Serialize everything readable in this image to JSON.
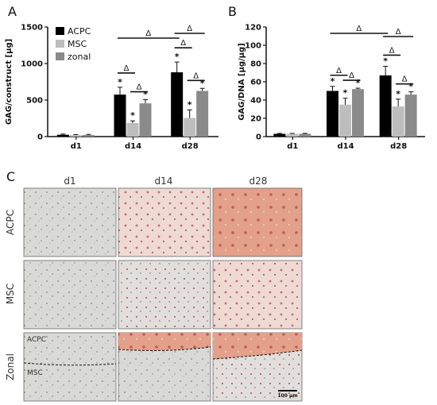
{
  "panels": {
    "a": "A",
    "b": "B",
    "c": "C"
  },
  "colors": {
    "acpc": "#000000",
    "msc": "#bdbdbd",
    "zonal": "#8a8a8a"
  },
  "chart_data": [
    {
      "type": "bar",
      "categories": [
        "d1",
        "d14",
        "d28"
      ],
      "ylabel": "GAG/construct [µg]",
      "ylim": [
        0,
        1500
      ],
      "yticks": [
        "0",
        "500",
        "1000",
        "1500"
      ],
      "series": [
        {
          "name": "ACPC",
          "values": [
            25,
            575,
            880
          ],
          "errors": [
            10,
            100,
            140
          ]
        },
        {
          "name": "MSC",
          "values": [
            20,
            185,
            255
          ],
          "errors": [
            8,
            30,
            110
          ]
        },
        {
          "name": "zonal",
          "values": [
            22,
            455,
            625
          ],
          "errors": [
            8,
            50,
            35
          ]
        }
      ],
      "significance": {
        "star": "*",
        "delta": "Δ"
      },
      "legend": "top-left"
    },
    {
      "type": "bar",
      "categories": [
        "d1",
        "d14",
        "d28"
      ],
      "ylabel": "GAG/DNA [µg/µg]",
      "ylim": [
        0,
        120
      ],
      "yticks": [
        "0",
        "20",
        "40",
        "60",
        "80",
        "100",
        "120"
      ],
      "series": [
        {
          "name": "ACPC",
          "values": [
            3,
            50,
            67
          ],
          "errors": [
            0.5,
            5,
            10
          ]
        },
        {
          "name": "MSC",
          "values": [
            3,
            35,
            33
          ],
          "errors": [
            0.5,
            7,
            8
          ]
        },
        {
          "name": "zonal",
          "values": [
            3,
            52,
            46
          ],
          "errors": [
            0.5,
            1,
            3
          ]
        }
      ],
      "significance": {
        "star": "*",
        "delta": "Δ"
      }
    }
  ],
  "histology": {
    "columns": [
      "d1",
      "d14",
      "d28"
    ],
    "rows": [
      "ACPC",
      "MSC",
      "Zonal"
    ],
    "zonal_labels": {
      "top": "ACPC",
      "bottom": "MSC"
    },
    "scale_bar": "100 µm"
  }
}
